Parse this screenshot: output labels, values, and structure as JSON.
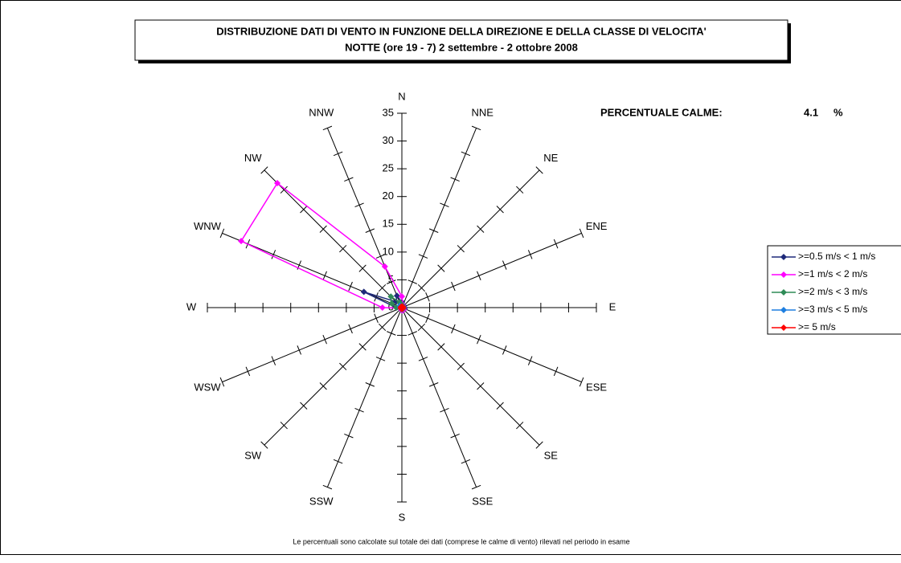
{
  "chart_data": {
    "type": "radar",
    "title": "DISTRIBUZIONE DATI DI VENTO IN FUNZIONE DELLA DIREZIONE E DELLA CLASSE DI VELOCITA'",
    "subtitle": "NOTTE (ore 19 - 7)  2 settembre - 2 ottobre 2008",
    "note": "Le percentuali sono calcolate sul totale dei dati (comprese le calme di vento) rilevati nel periodo in esame",
    "calm_label": "PERCENTUALE CALME:",
    "calm_value": 4.1,
    "calm_unit": "%",
    "categories": [
      "N",
      "NNE",
      "NE",
      "ENE",
      "E",
      "ESE",
      "SE",
      "SSE",
      "S",
      "SSW",
      "SW",
      "WSW",
      "W",
      "WNW",
      "NW",
      "NNW"
    ],
    "rlim": [
      0,
      35
    ],
    "rticks": [
      0,
      5,
      10,
      15,
      20,
      25,
      30,
      35
    ],
    "series": [
      {
        "name": ">=0.5 m/s < 1 m/s",
        "color": "#1f2a7a",
        "values": [
          1,
          0.5,
          0.5,
          0.3,
          0.5,
          0.5,
          0.5,
          0.5,
          0.5,
          0.3,
          0.3,
          0.3,
          1,
          7.4,
          1.5,
          2.3
        ]
      },
      {
        "name": ">=1 m/s < 2 m/s",
        "color": "#ff00ff",
        "values": [
          2,
          0.5,
          0.3,
          0.2,
          0.3,
          0.3,
          0.5,
          0.5,
          0.5,
          0.3,
          0.3,
          0.3,
          3.5,
          31.3,
          31.7,
          8
        ]
      },
      {
        "name": ">=2 m/s < 3 m/s",
        "color": "#2e8b57",
        "values": [
          0.5,
          0.3,
          0.3,
          0.2,
          0.2,
          0.2,
          0.3,
          0.3,
          0.3,
          0.2,
          0.2,
          0.2,
          1,
          2,
          2.8,
          1
        ]
      },
      {
        "name": ">=3 m/s < 5 m/s",
        "color": "#1e7fe0",
        "values": [
          0.2,
          0.2,
          0.2,
          0.2,
          0.2,
          0.2,
          0.2,
          0.2,
          0.2,
          0.2,
          0.2,
          0.2,
          0.3,
          0.3,
          0.5,
          0.3
        ]
      },
      {
        "name": ">= 5 m/s",
        "color": "#ff0000",
        "values": [
          0.2,
          0.2,
          0.2,
          0.2,
          0.2,
          0.2,
          0.2,
          0.2,
          0.2,
          0.2,
          0.2,
          0.2,
          0.2,
          0.2,
          0.2,
          0.2
        ]
      }
    ]
  }
}
